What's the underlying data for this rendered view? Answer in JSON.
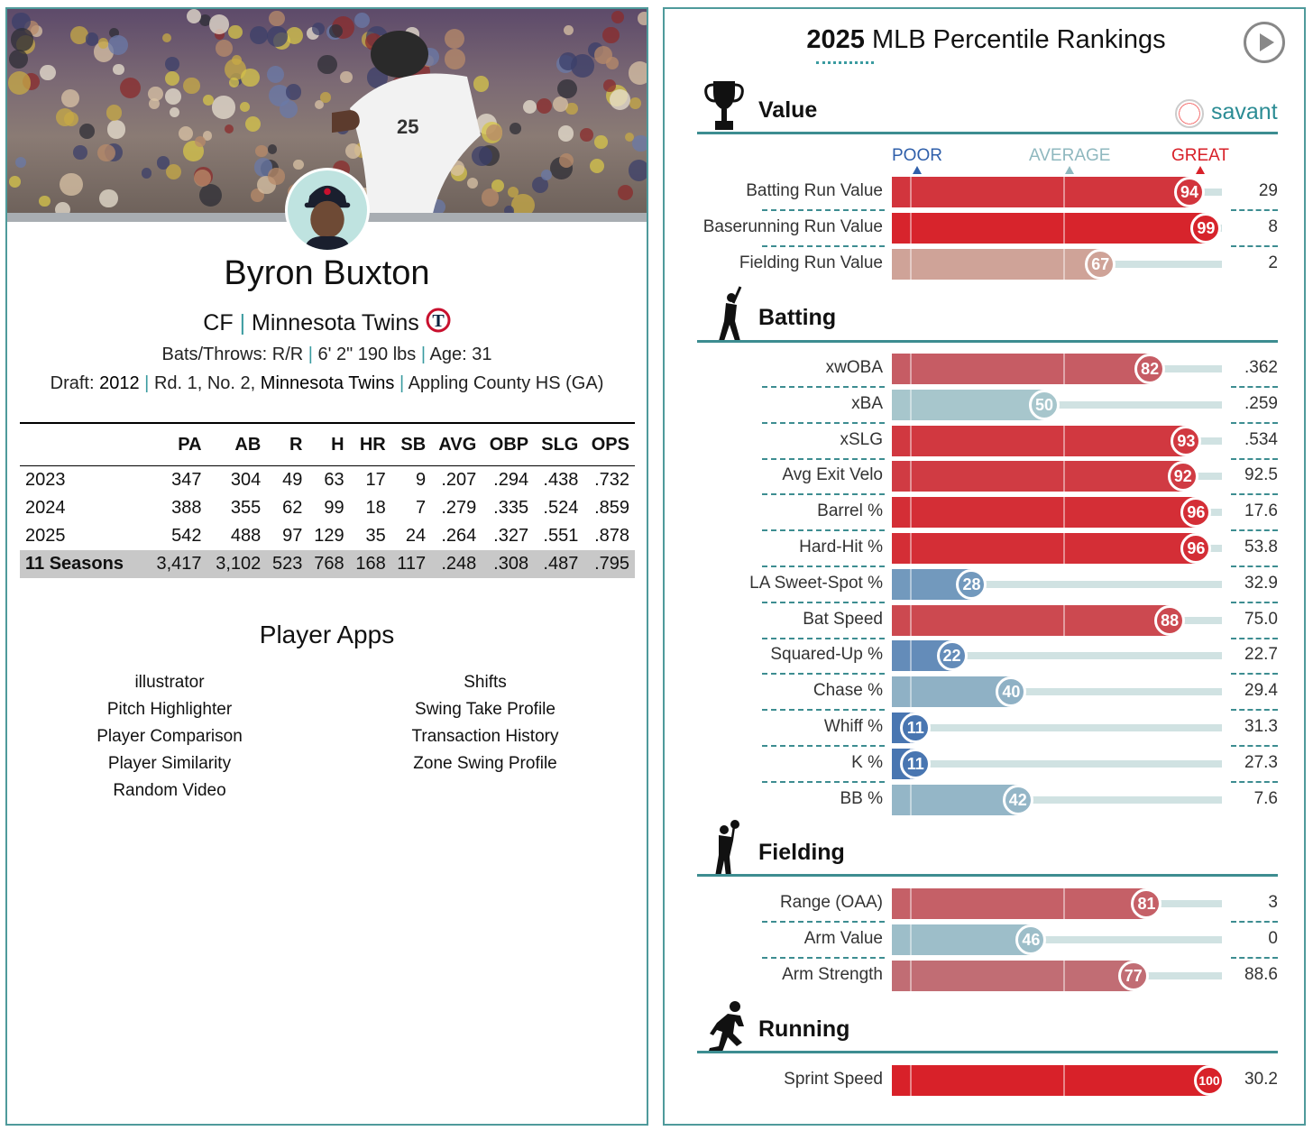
{
  "player": {
    "name": "Byron Buxton",
    "position": "CF",
    "team": "Minnesota Twins",
    "bats_throws_label": "Bats/Throws:",
    "bats_throws": "R/R",
    "height_weight": "6' 2\" 190 lbs",
    "age_label": "Age:",
    "age": "31",
    "draft_label": "Draft:",
    "draft_year": "2012",
    "draft_pick": "Rd. 1, No. 2,",
    "draft_team": "Minnesota Twins",
    "school": "Appling County HS (GA)",
    "team_logo_letter": "T"
  },
  "stats": {
    "headers": [
      "",
      "PA",
      "AB",
      "R",
      "H",
      "HR",
      "SB",
      "AVG",
      "OBP",
      "SLG",
      "OPS"
    ],
    "rows": [
      [
        "2023",
        "347",
        "304",
        "49",
        "63",
        "17",
        "9",
        ".207",
        ".294",
        ".438",
        ".732"
      ],
      [
        "2024",
        "388",
        "355",
        "62",
        "99",
        "18",
        "7",
        ".279",
        ".335",
        ".524",
        ".859"
      ],
      [
        "2025",
        "542",
        "488",
        "97",
        "129",
        "35",
        "24",
        ".264",
        ".327",
        ".551",
        ".878"
      ]
    ],
    "total": [
      "11 Seasons",
      "3,417",
      "3,102",
      "523",
      "768",
      "168",
      "117",
      ".248",
      ".308",
      ".487",
      ".795"
    ]
  },
  "apps": {
    "title": "Player Apps",
    "left": [
      "illustrator",
      "Pitch Highlighter",
      "Player Comparison",
      "Player Similarity",
      "Random Video"
    ],
    "right": [
      "Shifts",
      "Swing Take Profile",
      "Transaction History",
      "Zone Swing Profile"
    ]
  },
  "rankings": {
    "title_year": "2025",
    "title_rest": "MLB Percentile Rankings",
    "brand": "savant",
    "scale": {
      "poor": "POOR",
      "average": "AVERAGE",
      "great": "GREAT"
    },
    "colors": {
      "poor": "#2f5faa",
      "average": "#a7c6cc",
      "great": "#d82129"
    },
    "sections": [
      {
        "name": "Value",
        "icon": "trophy-icon",
        "metrics": [
          {
            "label": "Batting Run Value",
            "percentile": 94,
            "value": "29"
          },
          {
            "label": "Baserunning Run Value",
            "percentile": 99,
            "value": "8"
          },
          {
            "label": "Fielding Run Value",
            "percentile": 67,
            "value": "2",
            "muted": true
          }
        ]
      },
      {
        "name": "Batting",
        "icon": "batter-icon",
        "metrics": [
          {
            "label": "xwOBA",
            "percentile": 82,
            "value": ".362"
          },
          {
            "label": "xBA",
            "percentile": 50,
            "value": ".259"
          },
          {
            "label": "xSLG",
            "percentile": 93,
            "value": ".534"
          },
          {
            "label": "Avg Exit Velo",
            "percentile": 92,
            "value": "92.5"
          },
          {
            "label": "Barrel %",
            "percentile": 96,
            "value": "17.6"
          },
          {
            "label": "Hard-Hit %",
            "percentile": 96,
            "value": "53.8"
          },
          {
            "label": "LA Sweet-Spot %",
            "percentile": 28,
            "value": "32.9"
          },
          {
            "label": "Bat Speed",
            "percentile": 88,
            "value": "75.0"
          },
          {
            "label": "Squared-Up %",
            "percentile": 22,
            "value": "22.7"
          },
          {
            "label": "Chase %",
            "percentile": 40,
            "value": "29.4"
          },
          {
            "label": "Whiff %",
            "percentile": 11,
            "value": "31.3"
          },
          {
            "label": "K %",
            "percentile": 11,
            "value": "27.3"
          },
          {
            "label": "BB %",
            "percentile": 42,
            "value": "7.6"
          }
        ]
      },
      {
        "name": "Fielding",
        "icon": "fielder-icon",
        "metrics": [
          {
            "label": "Range (OAA)",
            "percentile": 81,
            "value": "3"
          },
          {
            "label": "Arm Value",
            "percentile": 46,
            "value": "0"
          },
          {
            "label": "Arm Strength",
            "percentile": 77,
            "value": "88.6"
          }
        ]
      },
      {
        "name": "Running",
        "icon": "runner-icon",
        "metrics": [
          {
            "label": "Sprint Speed",
            "percentile": 100,
            "value": "30.2"
          }
        ]
      }
    ]
  }
}
